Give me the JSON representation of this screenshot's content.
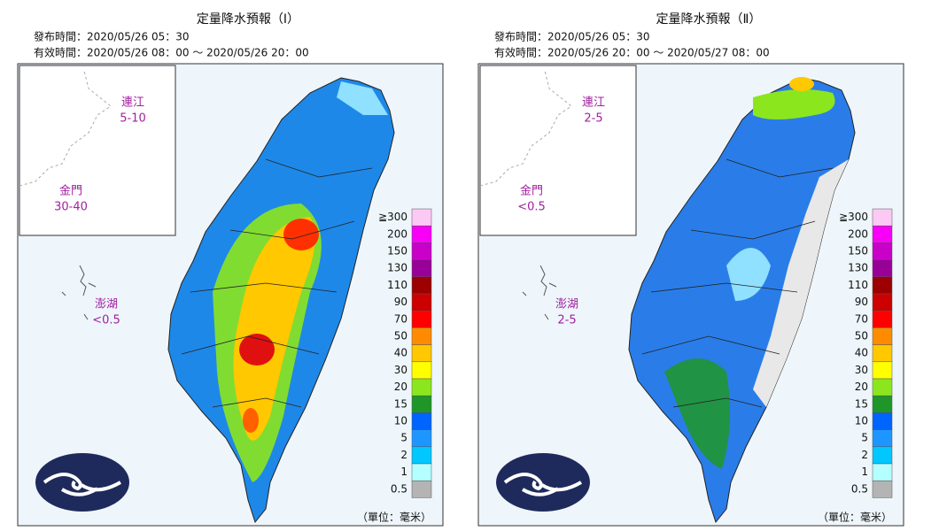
{
  "panels": [
    {
      "title": "定量降水預報（Ⅰ）",
      "issued": "發布時間：2020/05/26 05：30",
      "valid": "有效時間：2020/05/26 08：00 ～ 2020/05/26 20：00",
      "islands": [
        {
          "name": "連江",
          "range": "5-10"
        },
        {
          "name": "金門",
          "range": "30-40"
        },
        {
          "name": "澎湖",
          "range": "<0.5"
        }
      ],
      "unit": "（單位：毫米）"
    },
    {
      "title": "定量降水預報（Ⅱ）",
      "issued": "發布時間：2020/05/26 05：30",
      "valid": "有效時間：2020/05/26 20：00 ～ 2020/05/27 08：00",
      "islands": [
        {
          "name": "連江",
          "range": "2-5"
        },
        {
          "name": "金門",
          "range": "<0.5"
        },
        {
          "name": "澎湖",
          "range": "2-5"
        }
      ],
      "unit": "（單位：毫米）"
    }
  ],
  "legend": {
    "labels": [
      "≧300",
      "200",
      "150",
      "130",
      "110",
      "90",
      "70",
      "50",
      "40",
      "30",
      "20",
      "15",
      "10",
      "5",
      "2",
      "1",
      "0.5"
    ],
    "colors": [
      "#fcc8f4",
      "#f800f8",
      "#c800c8",
      "#980098",
      "#9c0000",
      "#cc0000",
      "#ff0000",
      "#ff8c00",
      "#ffc800",
      "#ffff00",
      "#8ce61e",
      "#1e9628",
      "#0064ff",
      "#1e96ff",
      "#00c8ff",
      "#b4ffff",
      "#b4b4b4"
    ]
  }
}
